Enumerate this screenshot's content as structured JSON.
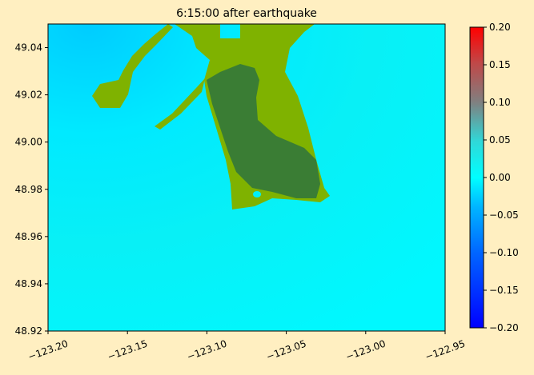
{
  "chart_data": {
    "type": "heatmap",
    "title": "6:15:00 after earthquake",
    "xlim": [
      -123.2,
      -122.95
    ],
    "xticks": [
      {
        "value": -123.2,
        "label": "−123.20"
      },
      {
        "value": -123.15,
        "label": "−123.15"
      },
      {
        "value": -123.1,
        "label": "−123.10"
      },
      {
        "value": -123.05,
        "label": "−123.05"
      },
      {
        "value": -123.0,
        "label": "−123.00"
      },
      {
        "value": -122.95,
        "label": "−122.95"
      }
    ],
    "ylim": [
      48.92,
      49.05
    ],
    "yticks": [
      48.92,
      48.94,
      48.96,
      48.98,
      {
        "value": 49.0,
        "label": "49.00"
      },
      49.02,
      49.04
    ],
    "colorbar": {
      "lim": [
        -0.2,
        0.2
      ],
      "ticks": [
        {
          "value": -0.2,
          "label": "−0.20"
        },
        {
          "value": -0.15,
          "label": "−0.15"
        },
        {
          "value": -0.1,
          "label": "−0.10"
        },
        {
          "value": -0.05,
          "label": "−0.05"
        },
        {
          "value": 0.0,
          "label": "0.00"
        },
        {
          "value": 0.05,
          "label": "0.05"
        },
        {
          "value": 0.1,
          "label": "0.10"
        },
        {
          "value": 0.15,
          "label": "0.15"
        },
        {
          "value": 0.2,
          "label": "0.20"
        }
      ]
    }
  }
}
